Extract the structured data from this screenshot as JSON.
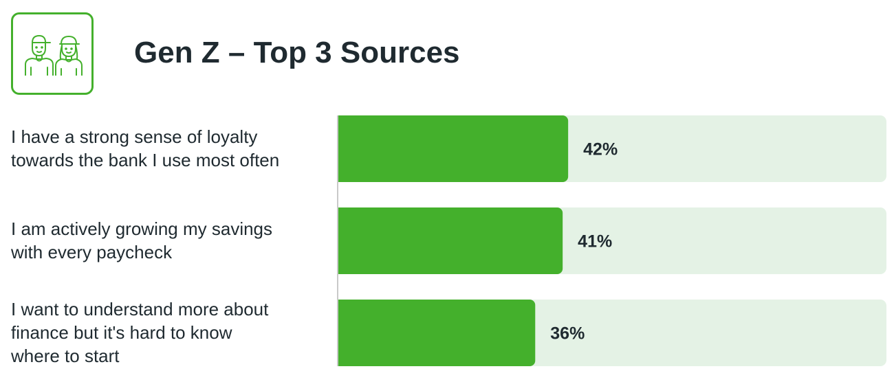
{
  "title": "Gen Z – Top 3 Sources",
  "icon": "gen-z-people-icon",
  "colors": {
    "accent": "#44b02c",
    "track": "#e4f2e5",
    "text": "#1f2a30"
  },
  "chart_data": {
    "type": "bar",
    "orientation": "horizontal",
    "categories": [
      "I have a strong sense of loyalty\ntowards the bank I use most often",
      "I am actively growing my savings\nwith every paycheck",
      "I want to understand more about\nfinance but it's hard to know\nwhere to start"
    ],
    "values": [
      42,
      41,
      36
    ],
    "value_labels": [
      "42%",
      "41%",
      "36%"
    ],
    "xlim": [
      0,
      100
    ],
    "grid": false,
    "legend": "none"
  }
}
